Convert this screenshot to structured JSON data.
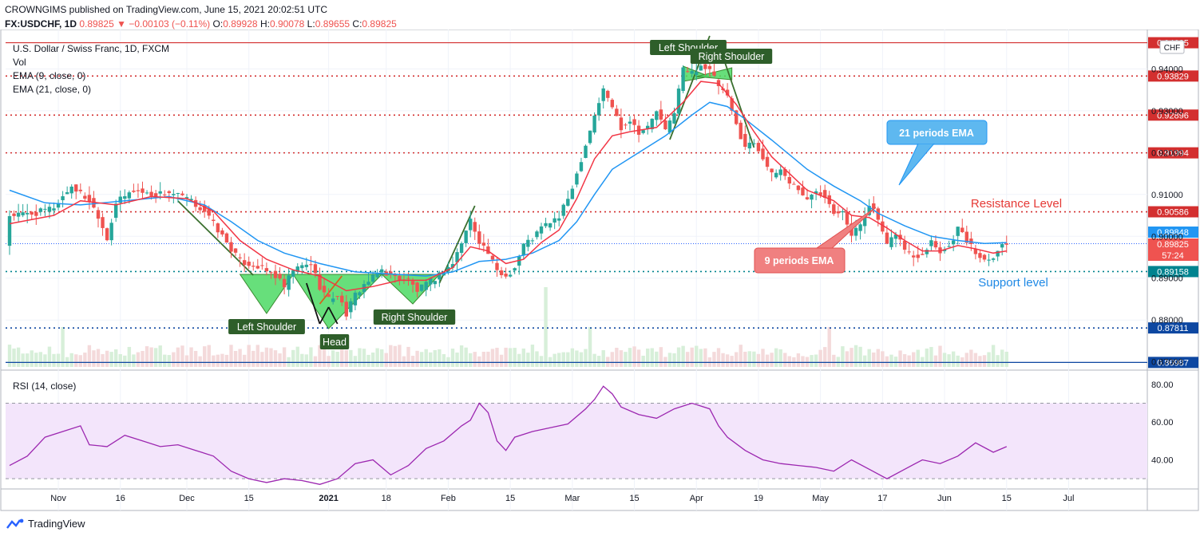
{
  "header": {
    "publisher_line": "CROWNGIMS published on TradingView.com, June 15, 2021 20:02:51 UTC",
    "symbol": "FX:USDCHF, 1D",
    "price": "0.89825",
    "change": "−0.00103 (−0.11%)",
    "o_label": "O:",
    "o_value": "0.89928",
    "h_label": "H:",
    "h_value": "0.90078",
    "l_label": "L:",
    "l_value": "0.89655",
    "c_label": "C:",
    "c_value": "0.89825"
  },
  "legend": {
    "title": "U.S. Dollar / Swiss Franc, 1D, FXCM",
    "vol": "Vol",
    "ema9": "EMA (9, close, 0)",
    "ema21": "EMA (21, close, 0)",
    "rsi": "RSI (14, close)"
  },
  "currency_badge": "CHF",
  "annotations": {
    "left_shoulder_low": "Left Shoulder",
    "head": "Head",
    "right_shoulder_low": "Right Shoulder",
    "left_shoulder_top": "Left Shoulder",
    "right_shoulder_top": "Right Shoulder",
    "ema21_callout": "21 periods EMA",
    "ema9_callout": "9 periods EMA",
    "resistance": "Resistance Level",
    "support": "Support level"
  },
  "footer_brand": "TradingView",
  "colors": {
    "up": "#26a69a",
    "down": "#ef5350",
    "ema9": "#f23645",
    "ema21": "#2196f3",
    "rsi": "#9c27b0",
    "pattern_fill": "#4cd964",
    "label_dark": "#2e5e2a",
    "level_red": "#d32f2f",
    "level_blue": "#1565c0"
  },
  "chart_data": {
    "type": "candlestick",
    "symbol": "USDCHF",
    "title": "U.S. Dollar / Swiss Franc, 1D, FXCM",
    "price_scale": {
      "ticks": [
        "0.87000",
        "0.88000",
        "0.89000",
        "0.90000",
        "0.91000",
        "0.92000",
        "0.93000",
        "0.94000"
      ],
      "ylim": [
        0.8688,
        0.9475
      ]
    },
    "x_tick_labels": [
      "Nov",
      "16",
      "Dec",
      "15",
      "2021",
      "18",
      "Feb",
      "15",
      "Mar",
      "15",
      "Apr",
      "19",
      "May",
      "17",
      "Jun",
      "15",
      "Jul"
    ],
    "levels": [
      {
        "value": "0.94625",
        "style": "solid",
        "color": "#d32f2f"
      },
      {
        "value": "0.93829",
        "style": "dotted",
        "color": "#d32f2f"
      },
      {
        "value": "0.92896",
        "style": "dotted",
        "color": "#d32f2f"
      },
      {
        "value": "0.91994",
        "style": "dotted",
        "color": "#d32f2f"
      },
      {
        "value": "0.90586",
        "style": "dotted",
        "color": "#d32f2f"
      },
      {
        "value": "0.89158",
        "style": "dotted",
        "color": "#00838f"
      },
      {
        "value": "0.87811",
        "style": "dotted",
        "color": "#0d47a1"
      },
      {
        "value": "0.86987",
        "style": "solid",
        "color": "#0d47a1"
      }
    ],
    "axis_badges": [
      {
        "value": "0.89848",
        "color": "#2196f3"
      },
      {
        "value": "0.89825",
        "color": "#ef5350"
      },
      {
        "value": "57:24",
        "color": "#ef5350"
      }
    ],
    "price_line": 0.89825,
    "close_path": [
      [
        0,
        0.905
      ],
      [
        6,
        0.9055
      ],
      [
        10,
        0.907
      ],
      [
        14,
        0.912
      ],
      [
        18,
        0.9085
      ],
      [
        20,
        0.905
      ],
      [
        22,
        0.8995
      ],
      [
        24,
        0.908
      ],
      [
        28,
        0.911
      ],
      [
        32,
        0.91
      ],
      [
        36,
        0.9105
      ],
      [
        40,
        0.909
      ],
      [
        44,
        0.906
      ],
      [
        48,
        0.9
      ],
      [
        52,
        0.894
      ],
      [
        56,
        0.8928
      ],
      [
        60,
        0.8905
      ],
      [
        62,
        0.8878
      ],
      [
        64,
        0.892
      ],
      [
        68,
        0.8935
      ],
      [
        70,
        0.888
      ],
      [
        72,
        0.885
      ],
      [
        74,
        0.886
      ],
      [
        76,
        0.8815
      ],
      [
        78,
        0.886
      ],
      [
        80,
        0.8885
      ],
      [
        82,
        0.89
      ],
      [
        84,
        0.892
      ],
      [
        86,
        0.8905
      ],
      [
        90,
        0.8895
      ],
      [
        92,
        0.887
      ],
      [
        96,
        0.89
      ],
      [
        100,
        0.8935
      ],
      [
        102,
        0.8985
      ],
      [
        104,
        0.904
      ],
      [
        106,
        0.899
      ],
      [
        108,
        0.896
      ],
      [
        110,
        0.8915
      ],
      [
        112,
        0.8905
      ],
      [
        114,
        0.8925
      ],
      [
        116,
        0.898
      ],
      [
        118,
        0.8995
      ],
      [
        120,
        0.902
      ],
      [
        122,
        0.9035
      ],
      [
        124,
        0.9045
      ],
      [
        126,
        0.909
      ],
      [
        128,
        0.915
      ],
      [
        130,
        0.922
      ],
      [
        132,
        0.929
      ],
      [
        134,
        0.935
      ],
      [
        136,
        0.931
      ],
      [
        138,
        0.926
      ],
      [
        140,
        0.928
      ],
      [
        142,
        0.925
      ],
      [
        144,
        0.926
      ],
      [
        146,
        0.93
      ],
      [
        148,
        0.925
      ],
      [
        150,
        0.93
      ],
      [
        152,
        0.94
      ],
      [
        154,
        0.939
      ],
      [
        156,
        0.941
      ],
      [
        158,
        0.9395
      ],
      [
        160,
        0.936
      ],
      [
        162,
        0.933
      ],
      [
        164,
        0.9265
      ],
      [
        166,
        0.9215
      ],
      [
        168,
        0.9225
      ],
      [
        170,
        0.919
      ],
      [
        172,
        0.9145
      ],
      [
        174,
        0.916
      ],
      [
        176,
        0.913
      ],
      [
        178,
        0.9115
      ],
      [
        180,
        0.9085
      ],
      [
        182,
        0.911
      ],
      [
        184,
        0.91
      ],
      [
        186,
        0.906
      ],
      [
        188,
        0.9065
      ],
      [
        190,
        0.9
      ],
      [
        192,
        0.903
      ],
      [
        194,
        0.908
      ],
      [
        196,
        0.904
      ],
      [
        198,
        0.8975
      ],
      [
        200,
        0.901
      ],
      [
        202,
        0.897
      ],
      [
        204,
        0.895
      ],
      [
        206,
        0.896
      ],
      [
        208,
        0.899
      ],
      [
        210,
        0.8965
      ],
      [
        212,
        0.8975
      ],
      [
        214,
        0.902
      ],
      [
        216,
        0.899
      ],
      [
        218,
        0.896
      ],
      [
        220,
        0.8945
      ],
      [
        222,
        0.8955
      ],
      [
        224,
        0.898
      ],
      [
        225,
        0.89825
      ]
    ],
    "ema9_path": [
      [
        0,
        0.903
      ],
      [
        10,
        0.905
      ],
      [
        16,
        0.9085
      ],
      [
        24,
        0.9075
      ],
      [
        32,
        0.9095
      ],
      [
        40,
        0.909
      ],
      [
        46,
        0.906
      ],
      [
        52,
        0.899
      ],
      [
        58,
        0.8945
      ],
      [
        64,
        0.892
      ],
      [
        70,
        0.8905
      ],
      [
        76,
        0.887
      ],
      [
        82,
        0.888
      ],
      [
        88,
        0.8895
      ],
      [
        94,
        0.8895
      ],
      [
        100,
        0.8925
      ],
      [
        104,
        0.8975
      ],
      [
        108,
        0.8965
      ],
      [
        112,
        0.8935
      ],
      [
        116,
        0.8945
      ],
      [
        120,
        0.8985
      ],
      [
        124,
        0.9015
      ],
      [
        128,
        0.909
      ],
      [
        132,
        0.9185
      ],
      [
        136,
        0.924
      ],
      [
        140,
        0.925
      ],
      [
        146,
        0.926
      ],
      [
        152,
        0.932
      ],
      [
        156,
        0.937
      ],
      [
        160,
        0.9365
      ],
      [
        164,
        0.9315
      ],
      [
        168,
        0.925
      ],
      [
        172,
        0.919
      ],
      [
        176,
        0.915
      ],
      [
        180,
        0.911
      ],
      [
        186,
        0.9085
      ],
      [
        190,
        0.905
      ],
      [
        194,
        0.9045
      ],
      [
        198,
        0.902
      ],
      [
        202,
        0.899
      ],
      [
        206,
        0.8965
      ],
      [
        210,
        0.8965
      ],
      [
        214,
        0.8978
      ],
      [
        218,
        0.897
      ],
      [
        222,
        0.896
      ],
      [
        225,
        0.8965
      ]
    ],
    "ema21_path": [
      [
        0,
        0.911
      ],
      [
        8,
        0.908
      ],
      [
        16,
        0.9075
      ],
      [
        26,
        0.9085
      ],
      [
        36,
        0.9095
      ],
      [
        44,
        0.9075
      ],
      [
        50,
        0.9035
      ],
      [
        56,
        0.899
      ],
      [
        62,
        0.896
      ],
      [
        70,
        0.8935
      ],
      [
        78,
        0.8915
      ],
      [
        86,
        0.891
      ],
      [
        94,
        0.8905
      ],
      [
        100,
        0.8915
      ],
      [
        106,
        0.894
      ],
      [
        112,
        0.8945
      ],
      [
        118,
        0.896
      ],
      [
        124,
        0.899
      ],
      [
        128,
        0.9035
      ],
      [
        132,
        0.91
      ],
      [
        136,
        0.916
      ],
      [
        142,
        0.92
      ],
      [
        148,
        0.924
      ],
      [
        154,
        0.929
      ],
      [
        158,
        0.932
      ],
      [
        162,
        0.931
      ],
      [
        166,
        0.928
      ],
      [
        172,
        0.923
      ],
      [
        180,
        0.916
      ],
      [
        186,
        0.912
      ],
      [
        192,
        0.9085
      ],
      [
        196,
        0.9055
      ],
      [
        202,
        0.9025
      ],
      [
        208,
        0.9
      ],
      [
        214,
        0.899
      ],
      [
        220,
        0.8983
      ],
      [
        225,
        0.8985
      ]
    ],
    "rsi": {
      "label": "RSI (14, close)",
      "ylim": [
        25,
        85
      ],
      "ticks": [
        "40.00",
        "60.00",
        "80.00"
      ],
      "band": [
        30,
        70
      ],
      "path": [
        [
          0,
          37
        ],
        [
          4,
          42
        ],
        [
          8,
          52
        ],
        [
          12,
          55
        ],
        [
          16,
          58
        ],
        [
          18,
          48
        ],
        [
          22,
          47
        ],
        [
          26,
          53
        ],
        [
          30,
          50
        ],
        [
          34,
          47
        ],
        [
          38,
          48
        ],
        [
          42,
          45
        ],
        [
          46,
          42
        ],
        [
          50,
          34
        ],
        [
          54,
          30
        ],
        [
          58,
          28
        ],
        [
          62,
          30
        ],
        [
          66,
          29
        ],
        [
          70,
          27
        ],
        [
          74,
          30
        ],
        [
          78,
          38
        ],
        [
          82,
          40
        ],
        [
          86,
          32
        ],
        [
          90,
          37
        ],
        [
          94,
          46
        ],
        [
          98,
          50
        ],
        [
          102,
          58
        ],
        [
          104,
          61
        ],
        [
          106,
          70
        ],
        [
          108,
          65
        ],
        [
          110,
          50
        ],
        [
          112,
          45
        ],
        [
          114,
          52
        ],
        [
          118,
          55
        ],
        [
          122,
          57
        ],
        [
          126,
          59
        ],
        [
          130,
          67
        ],
        [
          132,
          72
        ],
        [
          134,
          79
        ],
        [
          136,
          75
        ],
        [
          138,
          68
        ],
        [
          142,
          64
        ],
        [
          146,
          62
        ],
        [
          150,
          67
        ],
        [
          154,
          70
        ],
        [
          158,
          67
        ],
        [
          160,
          58
        ],
        [
          162,
          52
        ],
        [
          166,
          45
        ],
        [
          170,
          40
        ],
        [
          174,
          38
        ],
        [
          178,
          37
        ],
        [
          182,
          36
        ],
        [
          186,
          34
        ],
        [
          190,
          40
        ],
        [
          194,
          35
        ],
        [
          198,
          30
        ],
        [
          202,
          35
        ],
        [
          206,
          40
        ],
        [
          210,
          38
        ],
        [
          214,
          42
        ],
        [
          218,
          49
        ],
        [
          222,
          44
        ],
        [
          225,
          47
        ]
      ]
    }
  }
}
